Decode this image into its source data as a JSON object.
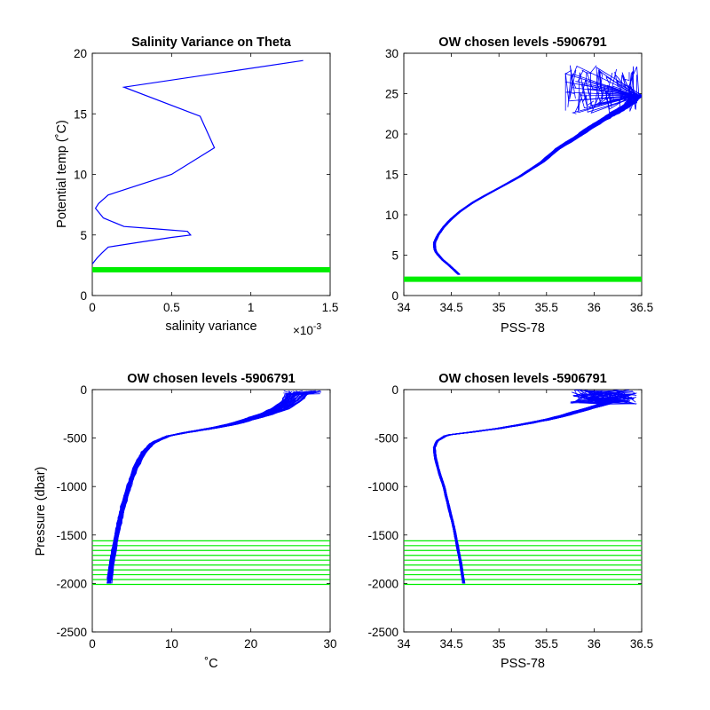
{
  "colors": {
    "profile": "#0000ff",
    "levels": "#00ee00",
    "axes": "#000000"
  },
  "chart_data": [
    {
      "type": "line",
      "title": "Salinity Variance on Theta",
      "xlabel": "salinity variance",
      "x_exponent_label": "×10",
      "x_exponent_value": "-3",
      "ylabel": "Potential temp (˚C)",
      "xlim": [
        0,
        1.5
      ],
      "ylim": [
        0,
        20
      ],
      "xticks": [
        0,
        0.5,
        1,
        1.5
      ],
      "xtick_labels": [
        "0",
        "0.5",
        "1",
        "1.5"
      ],
      "yticks": [
        0,
        5,
        10,
        15,
        20
      ],
      "ytick_labels": [
        "0",
        "5",
        "10",
        "15",
        "20"
      ],
      "series": [
        {
          "x": [
            0,
            0.03,
            0.06,
            0.1,
            0.3,
            0.5,
            0.62,
            0.6,
            0.4,
            0.2,
            0.07,
            0.02,
            0.04,
            0.1,
            0.5,
            0.77,
            0.68,
            0.2,
            1.33
          ],
          "y": [
            2.6,
            3.1,
            3.5,
            4.0,
            4.4,
            4.8,
            5.0,
            5.3,
            5.5,
            5.7,
            6.4,
            7.2,
            7.6,
            8.3,
            10.0,
            12.2,
            14.8,
            17.2,
            19.4
          ]
        }
      ],
      "bands": [
        2.2,
        2.35
      ]
    },
    {
      "type": "line",
      "title": "OW chosen levels -5906791",
      "xlabel": "PSS-78",
      "ylabel": "",
      "xlim": [
        34,
        36.5
      ],
      "ylim": [
        0,
        30
      ],
      "xticks": [
        34,
        34.5,
        35,
        35.5,
        36,
        36.5
      ],
      "xtick_labels": [
        "34",
        "34.5",
        "35",
        "35.5",
        "36",
        "36.5"
      ],
      "yticks": [
        0,
        5,
        10,
        15,
        20,
        25,
        30
      ],
      "ytick_labels": [
        "0",
        "5",
        "10",
        "15",
        "20",
        "25",
        "30"
      ],
      "profile": {
        "x": [
          34.58,
          34.5,
          34.4,
          34.33,
          34.32,
          34.36,
          34.42,
          34.5,
          34.6,
          34.75,
          34.95,
          35.2,
          35.45,
          35.62,
          35.8,
          35.95,
          36.1,
          36.25,
          36.38,
          36.45
        ],
        "y": [
          2.6,
          3.5,
          4.5,
          5.5,
          6.5,
          7.5,
          8.5,
          9.5,
          10.5,
          11.7,
          13.0,
          14.6,
          16.5,
          18.2,
          19.5,
          20.7,
          21.8,
          22.8,
          23.8,
          24.8
        ]
      },
      "top_salinity_range": [
        35.7,
        36.45
      ],
      "surface_temp_range": [
        22.5,
        28.5
      ],
      "bands": [
        2.2,
        2.35
      ]
    },
    {
      "type": "line",
      "title": "OW chosen levels -5906791",
      "xlabel": "˚C",
      "ylabel": "Pressure (dbar)",
      "xlim": [
        0,
        30
      ],
      "ylim": [
        -2500,
        0
      ],
      "xticks": [
        0,
        10,
        20,
        30
      ],
      "xtick_labels": [
        "0",
        "10",
        "20",
        "30"
      ],
      "yticks": [
        0,
        -500,
        -1000,
        -1500,
        -2000,
        -2500
      ],
      "ytick_labels": [
        "0",
        "-500",
        "-1000",
        "-1500",
        "-2000",
        "-2500"
      ],
      "profile": {
        "x": [
          2.1,
          2.4,
          2.8,
          3.3,
          3.9,
          4.6,
          5.5,
          6.4,
          7.6,
          9.5,
          12.0,
          15.0,
          18.0,
          20.0,
          22.0,
          23.5,
          25.0,
          25.7
        ],
        "y": [
          -2000,
          -1800,
          -1600,
          -1400,
          -1200,
          -1000,
          -800,
          -650,
          -550,
          -480,
          -440,
          -400,
          -350,
          -300,
          -250,
          -200,
          -120,
          -50
        ]
      },
      "surface_x_range": [
        24,
        29
      ],
      "levels": [
        -1560,
        -1610,
        -1660,
        -1710,
        -1760,
        -1810,
        -1860,
        -1910,
        -1960,
        -2010
      ]
    },
    {
      "type": "line",
      "title": "OW chosen levels -5906791",
      "xlabel": "PSS-78",
      "ylabel": "",
      "xlim": [
        34,
        36.5
      ],
      "ylim": [
        -2500,
        0
      ],
      "xticks": [
        34,
        34.5,
        35,
        35.5,
        36,
        36.5
      ],
      "xtick_labels": [
        "34",
        "34.5",
        "35",
        "35.5",
        "36",
        "36.5"
      ],
      "yticks": [
        0,
        -500,
        -1000,
        -1500,
        -2000,
        -2500
      ],
      "ytick_labels": [
        "0",
        "-500",
        "-1000",
        "-1500",
        "-2000",
        "-2500"
      ],
      "profile": {
        "x": [
          34.63,
          34.6,
          34.56,
          34.52,
          34.47,
          34.42,
          34.37,
          34.33,
          34.32,
          34.35,
          34.45,
          34.7,
          35.0,
          35.3,
          35.6,
          35.85,
          36.1
        ],
        "y": [
          -2000,
          -1800,
          -1600,
          -1400,
          -1200,
          -1000,
          -850,
          -700,
          -600,
          -530,
          -470,
          -440,
          -400,
          -350,
          -290,
          -220,
          -150
        ]
      },
      "top_salinity_range": [
        35.75,
        36.45
      ],
      "levels": [
        -1560,
        -1610,
        -1660,
        -1710,
        -1760,
        -1810,
        -1860,
        -1910,
        -1960,
        -2010
      ]
    }
  ]
}
